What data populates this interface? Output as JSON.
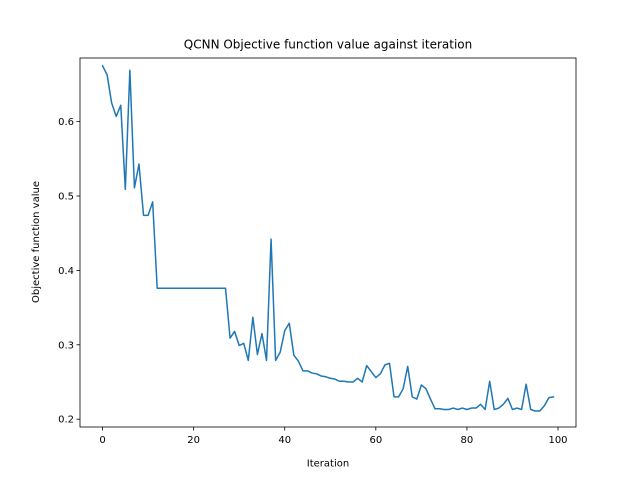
{
  "chart_data": {
    "type": "line",
    "title": "QCNN Objective function value against iteration",
    "xlabel": "Iteration",
    "ylabel": "Objective function value",
    "xlim": [
      -4.95,
      103.95
    ],
    "ylim": [
      0.1895,
      0.6855
    ],
    "xticks": [
      0,
      20,
      40,
      60,
      80,
      100
    ],
    "yticks": [
      0.2,
      0.3,
      0.4,
      0.5,
      0.6
    ],
    "xtick_labels": [
      "0",
      "20",
      "40",
      "60",
      "80",
      "100"
    ],
    "ytick_labels": [
      "0.2",
      "0.3",
      "0.4",
      "0.5",
      "0.6"
    ],
    "grid": false,
    "legend": "none",
    "series": [
      {
        "color": "#1f77b4",
        "x": [
          0,
          1,
          2,
          3,
          4,
          5,
          6,
          7,
          8,
          9,
          10,
          11,
          12,
          13,
          14,
          15,
          16,
          17,
          18,
          19,
          20,
          21,
          22,
          23,
          24,
          25,
          26,
          27,
          28,
          29,
          30,
          31,
          32,
          33,
          34,
          35,
          36,
          37,
          38,
          39,
          40,
          41,
          42,
          43,
          44,
          45,
          46,
          47,
          48,
          49,
          50,
          51,
          52,
          53,
          54,
          55,
          56,
          57,
          58,
          59,
          60,
          61,
          62,
          63,
          64,
          65,
          66,
          67,
          68,
          69,
          70,
          71,
          72,
          73,
          74,
          75,
          76,
          77,
          78,
          79,
          80,
          81,
          82,
          83,
          84,
          85,
          86,
          87,
          88,
          89,
          90,
          91,
          92,
          93,
          94,
          95,
          96,
          97,
          98,
          99
        ],
        "values": [
          0.675,
          0.663,
          0.625,
          0.607,
          0.622,
          0.509,
          0.669,
          0.511,
          0.543,
          0.474,
          0.474,
          0.492,
          0.376,
          0.376,
          0.376,
          0.376,
          0.376,
          0.376,
          0.376,
          0.376,
          0.376,
          0.376,
          0.376,
          0.376,
          0.376,
          0.376,
          0.376,
          0.376,
          0.309,
          0.318,
          0.299,
          0.302,
          0.279,
          0.337,
          0.287,
          0.315,
          0.279,
          0.442,
          0.279,
          0.29,
          0.319,
          0.329,
          0.286,
          0.278,
          0.265,
          0.265,
          0.262,
          0.261,
          0.258,
          0.257,
          0.255,
          0.254,
          0.251,
          0.251,
          0.25,
          0.25,
          0.255,
          0.25,
          0.272,
          0.264,
          0.256,
          0.261,
          0.273,
          0.275,
          0.23,
          0.23,
          0.241,
          0.271,
          0.23,
          0.227,
          0.246,
          0.241,
          0.227,
          0.214,
          0.214,
          0.213,
          0.213,
          0.215,
          0.213,
          0.215,
          0.213,
          0.215,
          0.215,
          0.22,
          0.213,
          0.251,
          0.213,
          0.215,
          0.22,
          0.228,
          0.213,
          0.215,
          0.213,
          0.247,
          0.213,
          0.211,
          0.211,
          0.218,
          0.229,
          0.23
        ]
      }
    ]
  }
}
